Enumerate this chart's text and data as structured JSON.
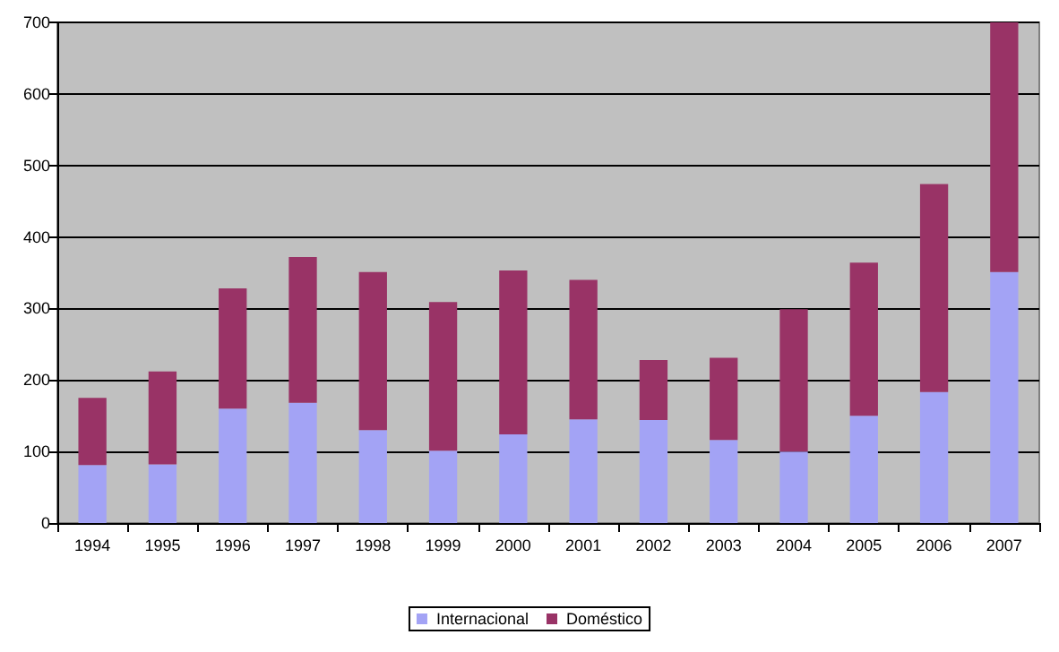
{
  "chart_data": {
    "type": "bar",
    "stacked": true,
    "categories": [
      "1994",
      "1995",
      "1996",
      "1997",
      "1998",
      "1999",
      "2000",
      "2001",
      "2002",
      "2003",
      "2004",
      "2005",
      "2006",
      "2007"
    ],
    "series": [
      {
        "name": "Internacional",
        "color": "#a3a3f5",
        "values": [
          81,
          82,
          160,
          168,
          130,
          101,
          124,
          145,
          144,
          116,
          100,
          150,
          183,
          351
        ]
      },
      {
        "name": "Doméstico",
        "color": "#993366",
        "values": [
          94,
          130,
          168,
          204,
          221,
          208,
          229,
          195,
          84,
          115,
          199,
          214,
          291,
          349
        ]
      }
    ],
    "ylim": [
      0,
      700
    ],
    "yticks": [
      0,
      100,
      200,
      300,
      400,
      500,
      600,
      700
    ],
    "grid": "y",
    "legend": "bottom"
  }
}
